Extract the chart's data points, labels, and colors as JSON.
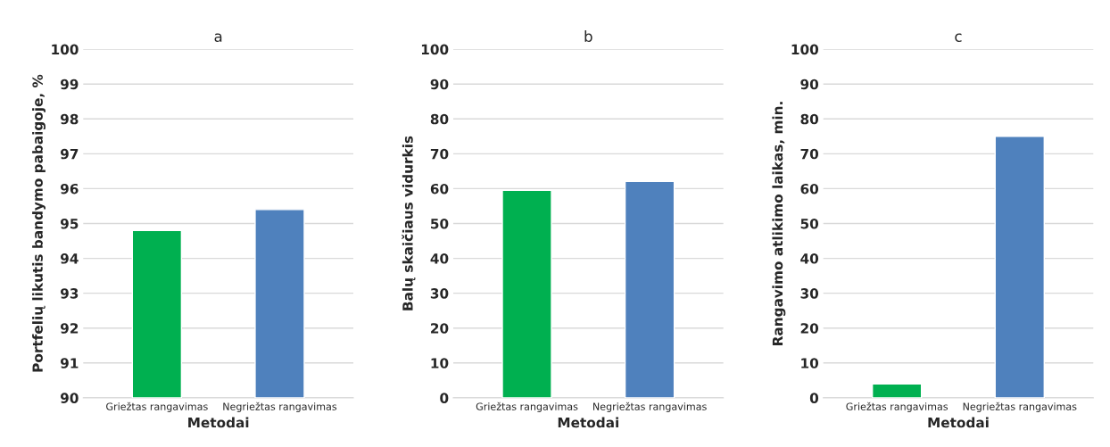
{
  "chart_data": [
    {
      "type": "bar",
      "title": "a",
      "xlabel": "Metodai",
      "ylabel": "Portfelių likutis bandymo pabaigoje, %",
      "categories": [
        "Griežtas rangavimas",
        "Negriežtas rangavimas"
      ],
      "values": [
        94.8,
        95.4
      ],
      "colors": [
        "#00b050",
        "#4f81bd"
      ],
      "ylim": [
        90,
        100
      ],
      "yticks": [
        90,
        91,
        92,
        93,
        94,
        95,
        96,
        97,
        98,
        99,
        100
      ],
      "grid": "y"
    },
    {
      "type": "bar",
      "title": "b",
      "xlabel": "Metodai",
      "ylabel": "Balų skaičiaus vidurkis",
      "categories": [
        "Griežtas rangavimas",
        "Negriežtas rangavimas"
      ],
      "values": [
        59.5,
        62.1
      ],
      "colors": [
        "#00b050",
        "#4f81bd"
      ],
      "ylim": [
        0,
        100
      ],
      "yticks": [
        0,
        10,
        20,
        30,
        40,
        50,
        60,
        70,
        80,
        90,
        100
      ],
      "grid": "y"
    },
    {
      "type": "bar",
      "title": "c",
      "xlabel": "Metodai",
      "ylabel": "Rangavimo atlikimo laikas, min.",
      "categories": [
        "Griežtas rangavimas",
        "Negriežtas rangavimas"
      ],
      "values": [
        4.0,
        75.0
      ],
      "colors": [
        "#00b050",
        "#4f81bd"
      ],
      "ylim": [
        0,
        100
      ],
      "yticks": [
        0,
        10,
        20,
        30,
        40,
        50,
        60,
        70,
        80,
        90,
        100
      ],
      "grid": "y"
    }
  ]
}
